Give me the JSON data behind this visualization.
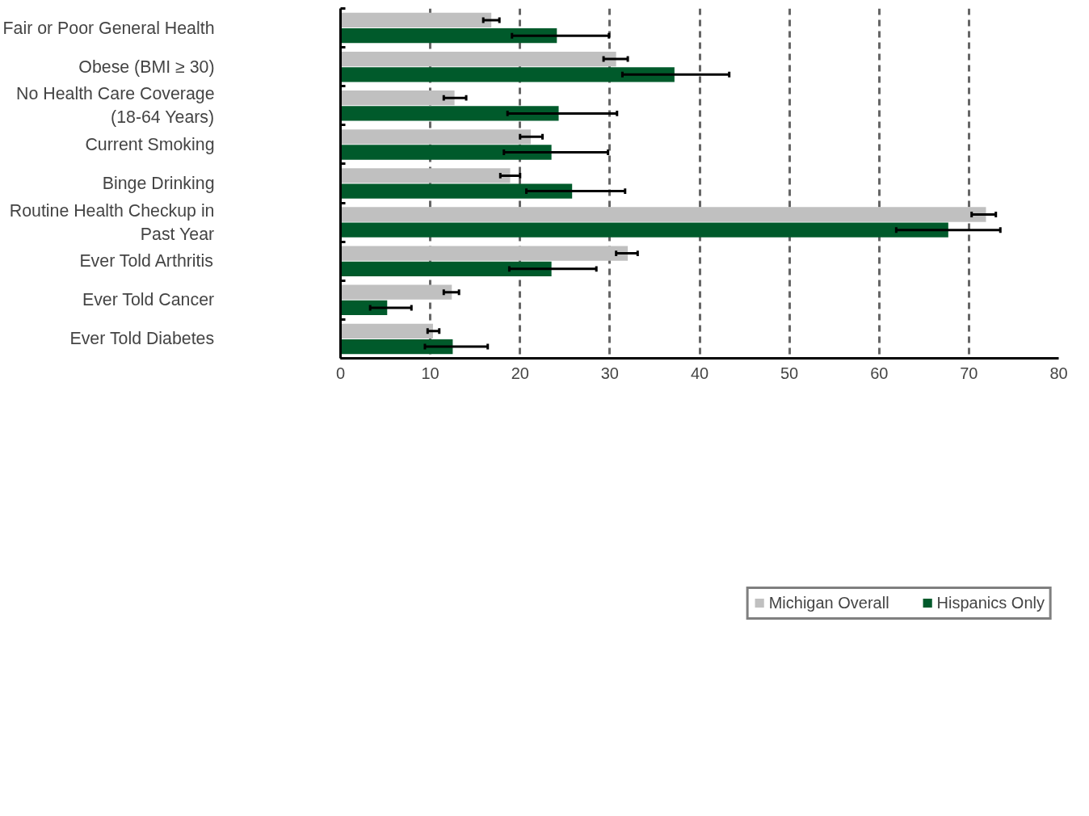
{
  "chart_data": {
    "type": "bar",
    "orientation": "horizontal",
    "categories": [
      "Fair or Poor General Health",
      "Obese (BMI ≥ 30)",
      "No Health Care Coverage (18-64 Years)",
      "Current Smoking",
      "Binge Drinking",
      "Routine Health Checkup in Past Year",
      "Ever Told Arthritis",
      "Ever Told Cancer",
      "Ever Told Diabetes"
    ],
    "series": [
      {
        "name": "Michigan Overall",
        "color": "#c0c0c0",
        "values": [
          16.8,
          30.7,
          12.7,
          21.2,
          18.9,
          71.9,
          32.0,
          12.4,
          10.3
        ],
        "errors": [
          [
            15.9,
            17.7
          ],
          [
            29.3,
            32.0
          ],
          [
            11.5,
            14.0
          ],
          [
            20.0,
            22.5
          ],
          [
            17.8,
            20.0
          ],
          [
            70.3,
            73.0
          ],
          [
            30.7,
            33.1
          ],
          [
            11.5,
            13.2
          ],
          [
            9.7,
            11.0
          ]
        ]
      },
      {
        "name": "Hispanics Only",
        "color": "#005a2b",
        "values": [
          24.1,
          37.2,
          24.3,
          23.5,
          25.8,
          67.7,
          23.5,
          5.2,
          12.5
        ],
        "errors": [
          [
            19.1,
            29.9
          ],
          [
            31.4,
            43.3
          ],
          [
            18.6,
            30.8
          ],
          [
            18.2,
            29.8
          ],
          [
            20.7,
            31.7
          ],
          [
            61.9,
            73.5
          ],
          [
            18.8,
            28.5
          ],
          [
            3.3,
            7.9
          ],
          [
            9.4,
            16.4
          ]
        ]
      }
    ],
    "xlim": [
      0,
      80
    ],
    "xticks": [
      0,
      10,
      20,
      30,
      40,
      50,
      60,
      70,
      80
    ],
    "grid": "x",
    "legend": "bottom"
  }
}
